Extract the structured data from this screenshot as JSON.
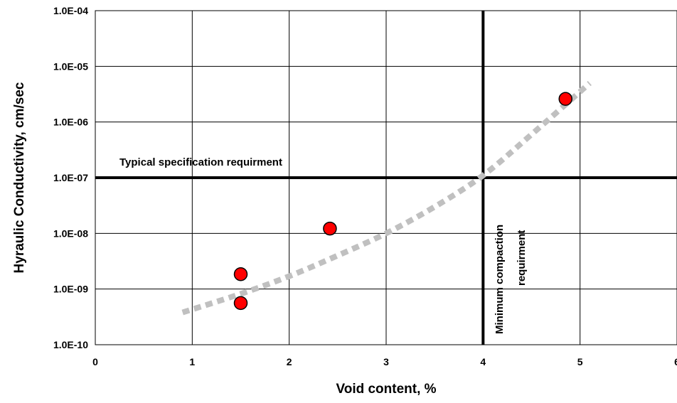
{
  "chart_data": {
    "type": "scatter",
    "title": "",
    "xlabel": "Void content, %",
    "ylabel": "Hyraulic Conductivity, cm/sec",
    "xlim": [
      0,
      6
    ],
    "ylim": [
      1e-10,
      0.0001
    ],
    "y_scale": "log",
    "grid": true,
    "x_ticks": [
      0,
      1,
      2,
      3,
      4,
      5,
      6
    ],
    "x_tick_labels": [
      "0",
      "1",
      "2",
      "3",
      "4",
      "5",
      "6"
    ],
    "y_ticks": [
      1e-10,
      1e-09,
      1e-08,
      1e-07,
      1e-06,
      1e-05,
      0.0001
    ],
    "y_tick_labels": [
      "1.0E-10",
      "1.0E-09",
      "1.0E-08",
      "1.0E-07",
      "1.0E-06",
      "1.0E-05",
      "1.0E-04"
    ],
    "series": [
      {
        "marker_color": "#ff0000",
        "points": [
          {
            "x": 1.5,
            "y": 1.85e-09
          },
          {
            "x": 1.5,
            "y": 5.6e-10
          },
          {
            "x": 2.42,
            "y": 1.22e-08
          },
          {
            "x": 4.85,
            "y": 2.6e-06
          }
        ]
      }
    ],
    "trendline": {
      "style": "dotted",
      "color": "#c0c0c0",
      "x_range": [
        0.9,
        5.1
      ],
      "points": [
        {
          "x": 0.9,
          "y": 3.8e-10
        },
        {
          "x": 1.5,
          "y": 8.2e-10
        },
        {
          "x": 2.0,
          "y": 1.7e-09
        },
        {
          "x": 2.5,
          "y": 4e-09
        },
        {
          "x": 3.0,
          "y": 1e-08
        },
        {
          "x": 3.5,
          "y": 3e-08
        },
        {
          "x": 4.0,
          "y": 1.1e-07
        },
        {
          "x": 4.5,
          "y": 6e-07
        },
        {
          "x": 5.1,
          "y": 5e-06
        }
      ]
    },
    "reference_lines": [
      {
        "orientation": "horizontal",
        "value": 1e-07,
        "label": "Typical specification requirment"
      },
      {
        "orientation": "vertical",
        "value": 4,
        "label_lines": [
          "Minimum compaction",
          "requirment"
        ]
      }
    ]
  }
}
